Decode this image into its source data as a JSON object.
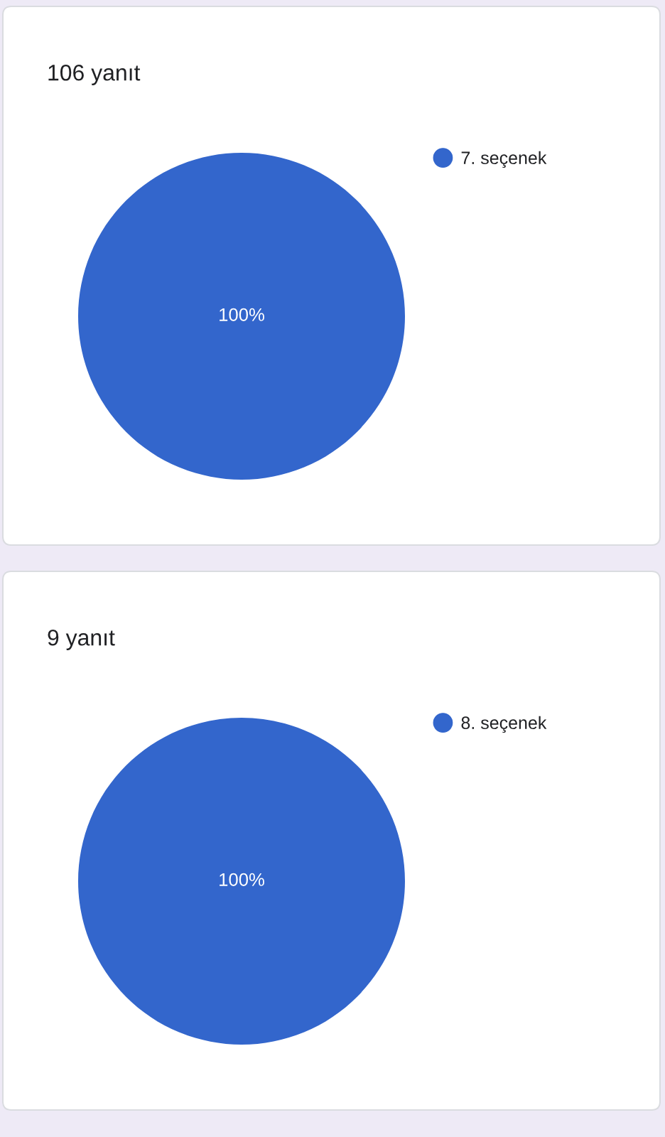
{
  "chart_data": [
    {
      "type": "pie",
      "title": "106 yanıt",
      "categories": [
        "7. seçenek"
      ],
      "values": [
        100
      ],
      "colors": [
        "#3366cc"
      ],
      "value_labels": [
        "100%"
      ],
      "legend": "top right"
    },
    {
      "type": "pie",
      "title": "9 yanıt",
      "categories": [
        "8. seçenek"
      ],
      "values": [
        100
      ],
      "colors": [
        "#3366cc"
      ],
      "value_labels": [
        "100%"
      ],
      "legend": "top right"
    }
  ]
}
